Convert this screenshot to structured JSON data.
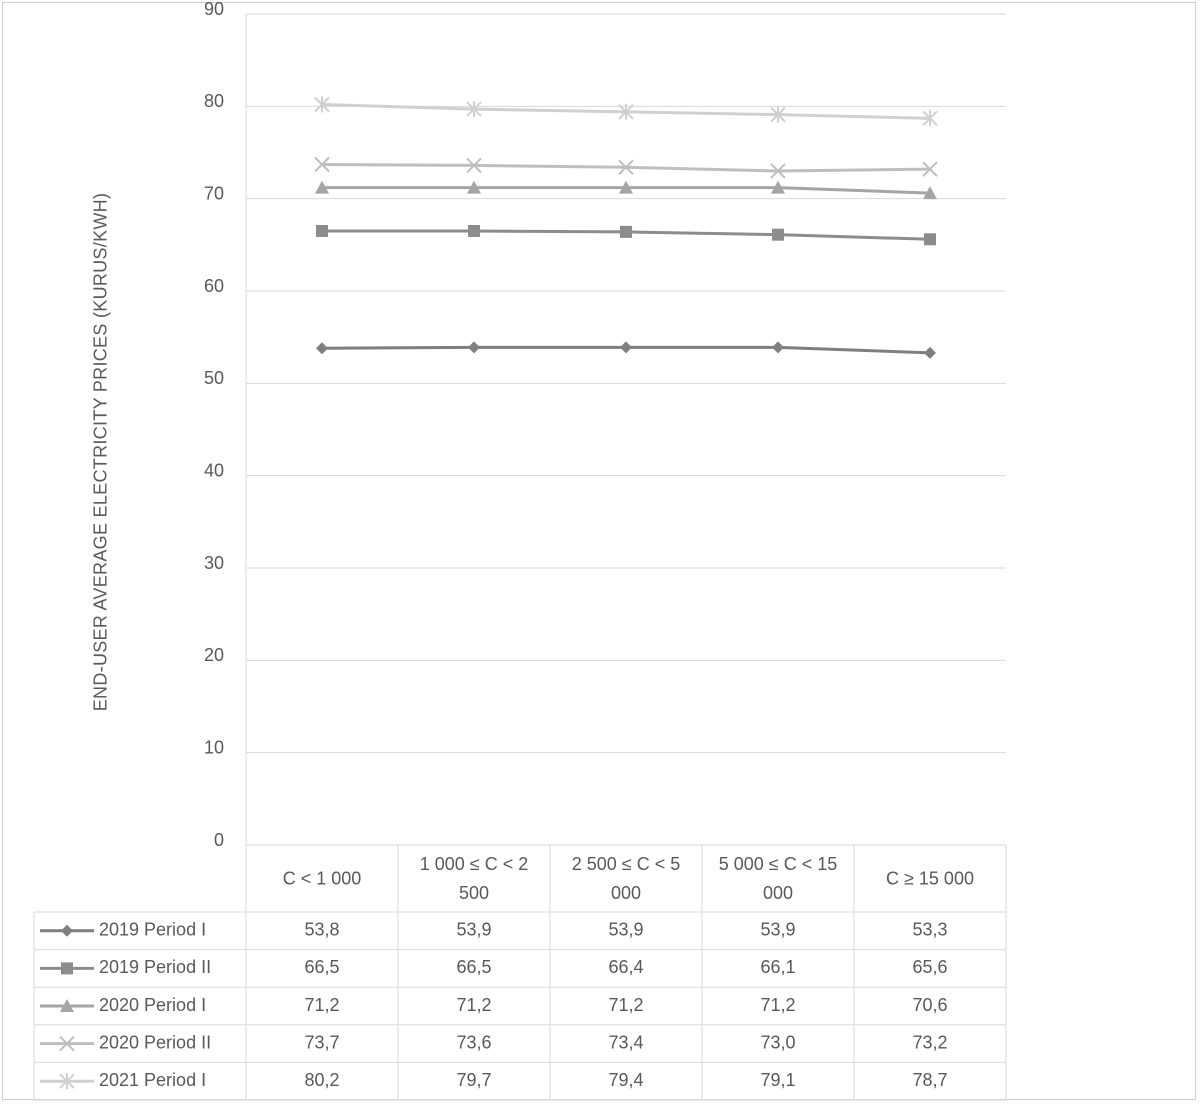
{
  "chart_data": {
    "type": "line",
    "ylabel": "END-USER  AVERAGE  ELECTRICITY PRICES (KURUS/KWH)",
    "ylim": [
      0,
      90
    ],
    "ytick_step": 10,
    "grid": true,
    "legend": "data-table",
    "categories": [
      "C < 1 000",
      "1 000 ≤ C < 2 500",
      "2 500 ≤ C < 5 000",
      "5 000 ≤ C < 15 000",
      "C ≥ 15 000"
    ],
    "series": [
      {
        "name": "2019 Period I",
        "marker": "diamond",
        "color": "#7f7f7f",
        "values": [
          53.8,
          53.9,
          53.9,
          53.9,
          53.3
        ],
        "labels": [
          "53,8",
          "53,9",
          "53,9",
          "53,9",
          "53,3"
        ]
      },
      {
        "name": "2019 Period II",
        "marker": "square",
        "color": "#8c8c8c",
        "values": [
          66.5,
          66.5,
          66.4,
          66.1,
          65.6
        ],
        "labels": [
          "66,5",
          "66,5",
          "66,4",
          "66,1",
          "65,6"
        ]
      },
      {
        "name": "2020 Period I",
        "marker": "triangle",
        "color": "#a5a5a5",
        "values": [
          71.2,
          71.2,
          71.2,
          71.2,
          70.6
        ],
        "labels": [
          "71,2",
          "71,2",
          "71,2",
          "71,2",
          "70,6"
        ]
      },
      {
        "name": "2020  Period II",
        "marker": "x",
        "color": "#bfbfbf",
        "values": [
          73.7,
          73.6,
          73.4,
          73.0,
          73.2
        ],
        "labels": [
          "73,7",
          "73,6",
          "73,4",
          "73,0",
          "73,2"
        ]
      },
      {
        "name": "2021  Period I",
        "marker": "star",
        "color": "#d0d0d0",
        "values": [
          80.2,
          79.7,
          79.4,
          79.1,
          78.7
        ],
        "labels": [
          "80,2",
          "79,7",
          "79,4",
          "79,1",
          "78,7"
        ]
      }
    ]
  }
}
